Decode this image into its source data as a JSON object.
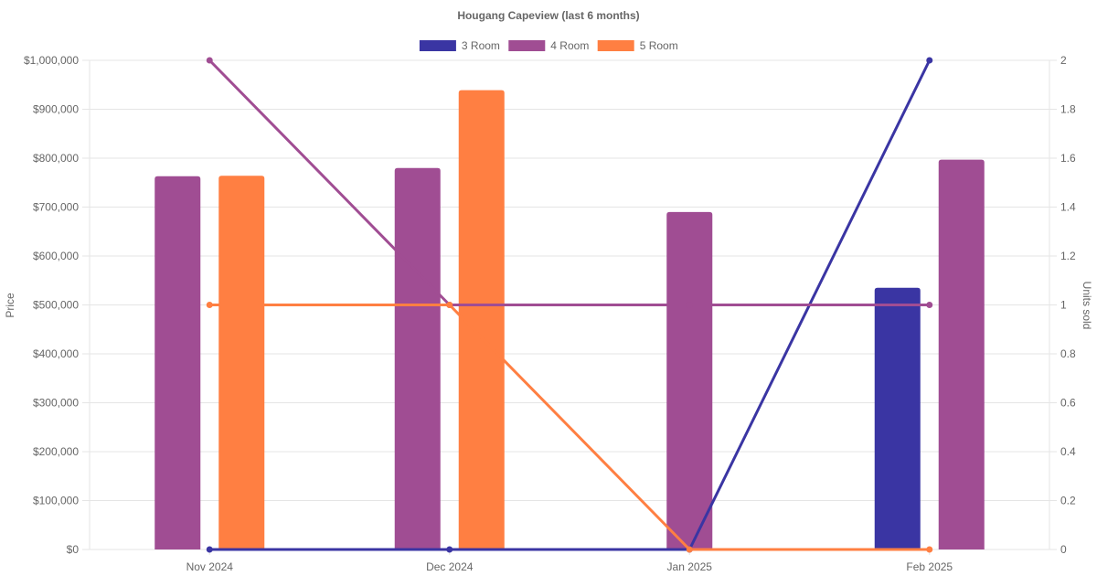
{
  "chart_data": {
    "type": "bar",
    "title": "Hougang Capeview (last 6 months)",
    "categories": [
      "Nov 2024",
      "Dec 2024",
      "Jan 2025",
      "Feb 2025"
    ],
    "legend_placement": "top",
    "grid": true,
    "y_left": {
      "label": "Price",
      "ylim": [
        0,
        1000000
      ],
      "ticks": [
        "$0",
        "$100,000",
        "$200,000",
        "$300,000",
        "$400,000",
        "$500,000",
        "$600,000",
        "$700,000",
        "$800,000",
        "$900,000",
        "$1,000,000"
      ]
    },
    "y_right": {
      "label": "Units sold",
      "ylim": [
        0,
        2
      ],
      "ticks": [
        "0",
        "0.2",
        "0.4",
        "0.6",
        "0.8",
        "1",
        "1.2",
        "1.4",
        "1.6",
        "1.8",
        "2"
      ]
    },
    "series": [
      {
        "name": "3 Room",
        "color": "#3a35a3",
        "price": [
          null,
          null,
          null,
          535000
        ],
        "units": [
          0,
          0,
          0,
          2
        ]
      },
      {
        "name": "4 Room",
        "color": "#a04d93",
        "price": [
          763000,
          780000,
          690000,
          797000
        ],
        "units": [
          2,
          1,
          1,
          1
        ]
      },
      {
        "name": "5 Room",
        "color": "#ff7f42",
        "price": [
          764000,
          939000,
          null,
          null
        ],
        "units": [
          1,
          1,
          0,
          0
        ]
      }
    ]
  }
}
